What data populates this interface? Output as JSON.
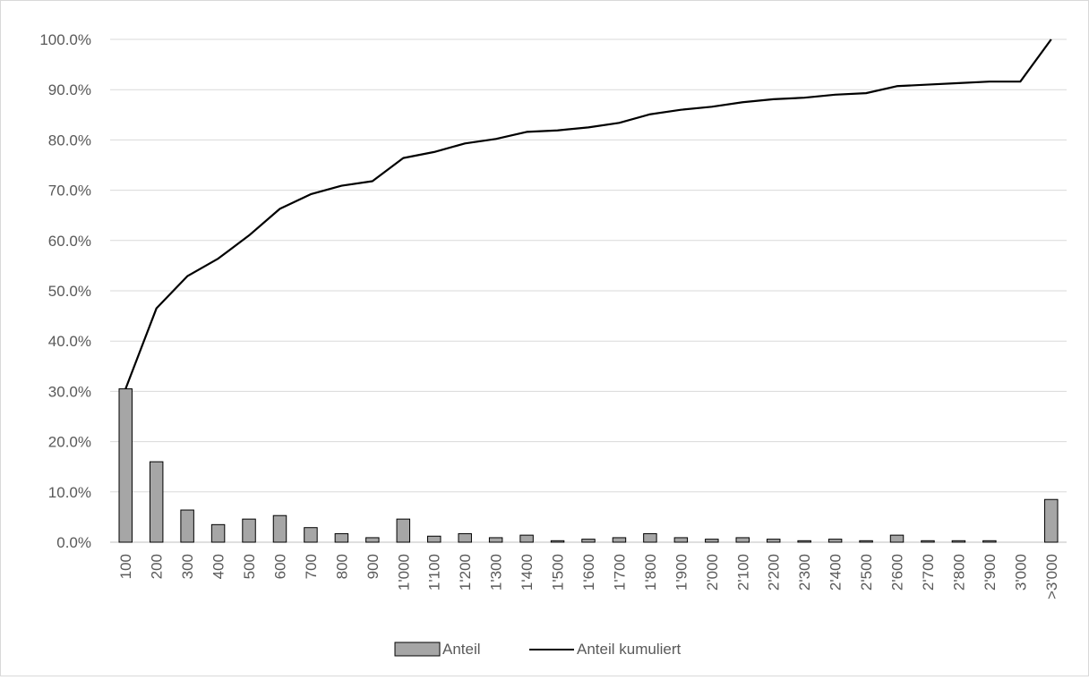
{
  "chart_data": {
    "type": "bar",
    "categories": [
      "100",
      "200",
      "300",
      "400",
      "500",
      "600",
      "700",
      "800",
      "900",
      "1'000",
      "1'100",
      "1'200",
      "1'300",
      "1'400",
      "1'500",
      "1'600",
      "1'700",
      "1'800",
      "1'900",
      "2'000",
      "2'100",
      "2'200",
      "2'300",
      "2'400",
      "2'500",
      "2'600",
      "2'700",
      "2'800",
      "2'900",
      "3'000",
      ">3'000"
    ],
    "series": [
      {
        "name": "Anteil",
        "kind": "bar",
        "color": "#a6a6a6",
        "values": [
          30.5,
          16.0,
          6.4,
          3.5,
          4.6,
          5.3,
          2.9,
          1.7,
          0.9,
          4.6,
          1.2,
          1.7,
          0.9,
          1.4,
          0.3,
          0.6,
          0.9,
          1.7,
          0.9,
          0.6,
          0.9,
          0.6,
          0.3,
          0.6,
          0.3,
          1.4,
          0.3,
          0.3,
          0.3,
          0.0,
          8.5
        ]
      },
      {
        "name": "Anteil kumuliert",
        "kind": "line",
        "color": "#000000",
        "values": [
          30.5,
          46.5,
          52.9,
          56.4,
          61.0,
          66.3,
          69.2,
          70.9,
          71.8,
          76.4,
          77.6,
          79.3,
          80.2,
          81.6,
          81.9,
          82.5,
          83.4,
          85.1,
          86.0,
          86.6,
          87.5,
          88.1,
          88.4,
          89.0,
          89.3,
          90.7,
          91.0,
          91.3,
          91.6,
          91.6,
          100.0
        ]
      }
    ],
    "y_ticks": [
      "0.0%",
      "10.0%",
      "20.0%",
      "30.0%",
      "40.0%",
      "50.0%",
      "60.0%",
      "70.0%",
      "80.0%",
      "90.0%",
      "100.0%"
    ],
    "ylim": [
      0,
      100
    ],
    "grid": true,
    "legend_position": "bottom",
    "gridline_color": "#d9d9d9"
  }
}
